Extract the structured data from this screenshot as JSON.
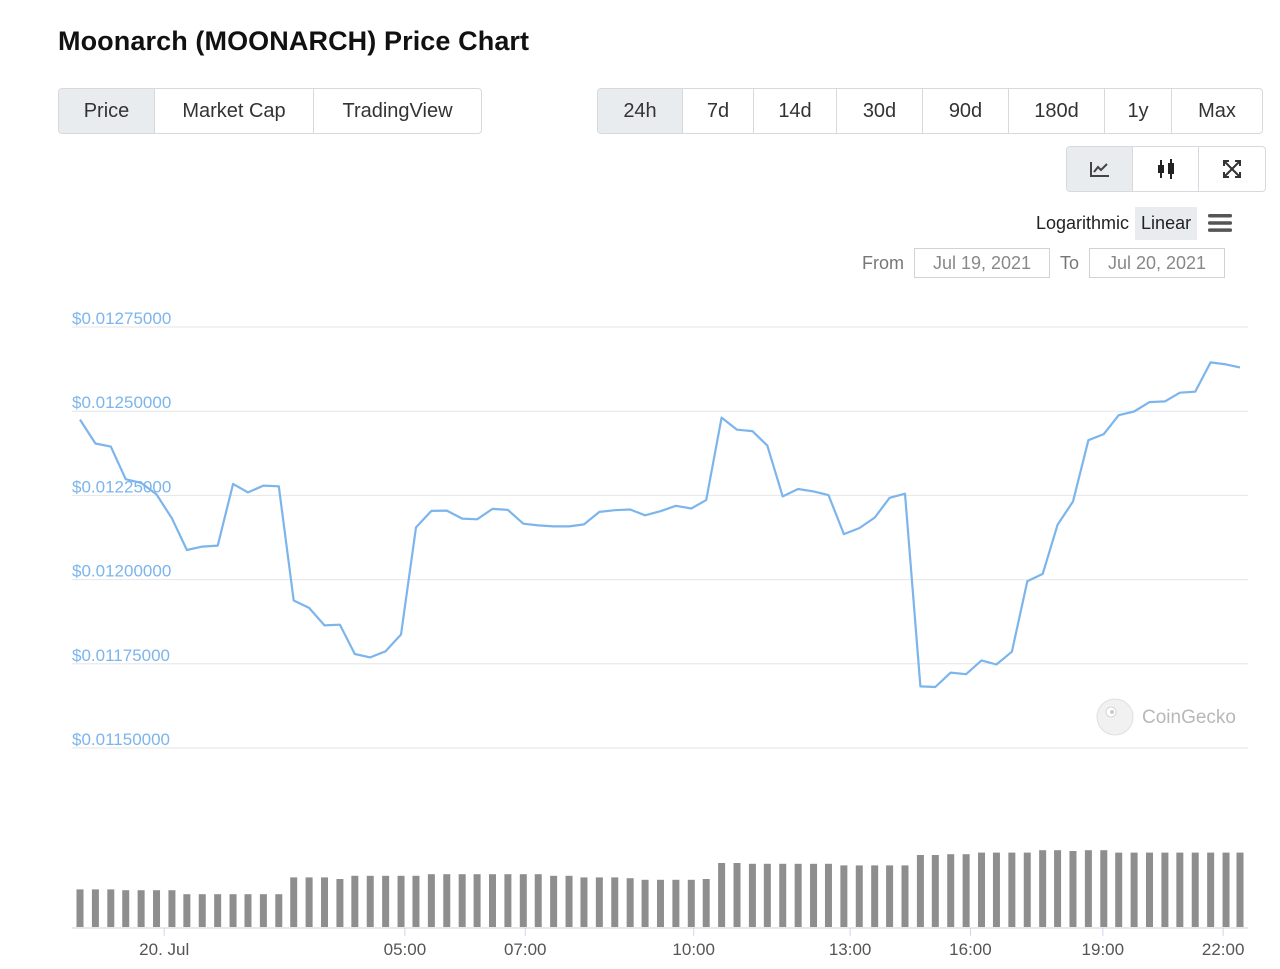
{
  "page": {
    "title": "Moonarch (MOONARCH) Price Chart"
  },
  "view_tabs": [
    {
      "label": "Price",
      "active": true
    },
    {
      "label": "Market Cap",
      "active": false
    },
    {
      "label": "TradingView",
      "active": false
    }
  ],
  "range_tabs": [
    {
      "label": "24h",
      "active": true
    },
    {
      "label": "7d",
      "active": false
    },
    {
      "label": "14d",
      "active": false
    },
    {
      "label": "30d",
      "active": false
    },
    {
      "label": "90d",
      "active": false
    },
    {
      "label": "180d",
      "active": false
    },
    {
      "label": "1y",
      "active": false
    },
    {
      "label": "Max",
      "active": false
    }
  ],
  "chart_type_buttons": [
    {
      "icon": "line-chart-icon",
      "active": true
    },
    {
      "icon": "candlestick-icon",
      "active": false
    },
    {
      "icon": "fullscreen-icon",
      "active": false
    }
  ],
  "scale": {
    "logarithmic_label": "Logarithmic",
    "linear_label": "Linear",
    "active": "Linear",
    "menu_icon": "hamburger-menu-icon"
  },
  "date_range": {
    "from_label": "From",
    "from_value": "Jul 19, 2021",
    "to_label": "To",
    "to_value": "Jul 20, 2021"
  },
  "watermark": {
    "text": "CoinGecko",
    "icon": "coingecko-logo-icon"
  },
  "colors": {
    "line": "#7cb5ec",
    "axis_label": "#7cb5ec",
    "volume": "#8e8e8e",
    "grid": "#e6e6e6"
  },
  "chart_data": {
    "type": "line",
    "y_scale": "linear",
    "ylim": [
      0.0115,
      0.01275
    ],
    "y_ticks": [
      0.0115,
      0.01175,
      0.012,
      0.01225,
      0.0125,
      0.01275
    ],
    "y_tick_labels": [
      "$0.01150000",
      "$0.01175000",
      "$0.01200000",
      "$0.01225000",
      "$0.01250000",
      "$0.01275000"
    ],
    "x_range_hours": [
      -1.75,
      22.35
    ],
    "x_ticks": [
      {
        "hour": 0,
        "label": "20. Jul"
      },
      {
        "hour": 5,
        "label": "05:00"
      },
      {
        "hour": 7.5,
        "label": "07:00"
      },
      {
        "hour": 11,
        "label": "10:00"
      },
      {
        "hour": 14.25,
        "label": "13:00"
      },
      {
        "hour": 16.75,
        "label": "16:00"
      },
      {
        "hour": 19.5,
        "label": "19:00"
      },
      {
        "hour": 22,
        "label": "22:00"
      }
    ],
    "series": [
      {
        "x": [
          -1.75,
          -1.43,
          -1.11,
          -0.8,
          -0.48,
          -0.16,
          0.16,
          0.47,
          0.79,
          1.11,
          1.43,
          1.74,
          2.06,
          2.38,
          2.69,
          3.01,
          3.33,
          3.65,
          3.96,
          4.28,
          4.6,
          4.92,
          5.23,
          5.55,
          5.87,
          6.19,
          6.5,
          6.82,
          7.14,
          7.46,
          7.77,
          8.09,
          8.41,
          8.72,
          9.04,
          9.36,
          9.68,
          9.99,
          10.31,
          10.63,
          10.95,
          11.26,
          11.58,
          11.9,
          12.22,
          12.53,
          12.85,
          13.17,
          13.49,
          13.8,
          14.12,
          14.44,
          14.76,
          15.07,
          15.39,
          15.71,
          16.02,
          16.34,
          16.66,
          16.98,
          17.29,
          17.61,
          17.93,
          18.25,
          18.56,
          18.88,
          19.2,
          19.52,
          19.83,
          20.15,
          20.47,
          20.79,
          21.1,
          21.42,
          21.74,
          22.06,
          22.35
        ],
        "y": [
          0.012475,
          0.012404,
          0.012395,
          0.012298,
          0.012287,
          0.012253,
          0.012182,
          0.012088,
          0.012098,
          0.012101,
          0.012284,
          0.012259,
          0.012279,
          0.012277,
          0.011938,
          0.011916,
          0.011864,
          0.011866,
          0.011779,
          0.011769,
          0.011787,
          0.011837,
          0.012155,
          0.012204,
          0.012205,
          0.012181,
          0.012179,
          0.01221,
          0.012207,
          0.012166,
          0.012161,
          0.012158,
          0.012158,
          0.012164,
          0.012201,
          0.012206,
          0.012208,
          0.012191,
          0.012203,
          0.012219,
          0.012211,
          0.012236,
          0.012481,
          0.012445,
          0.012441,
          0.012398,
          0.012247,
          0.012269,
          0.012262,
          0.012251,
          0.012135,
          0.012153,
          0.012184,
          0.012243,
          0.012255,
          0.011683,
          0.011681,
          0.011724,
          0.011719,
          0.01176,
          0.011748,
          0.011786,
          0.011995,
          0.012017,
          0.012163,
          0.012232,
          0.012414,
          0.012432,
          0.012488,
          0.012499,
          0.012527,
          0.012529,
          0.012555,
          0.012558,
          0.012645,
          0.012639,
          0.01263
        ]
      }
    ],
    "volume": {
      "x": [
        -1.75,
        -1.43,
        -1.11,
        -0.8,
        -0.48,
        -0.16,
        0.16,
        0.47,
        0.79,
        1.11,
        1.43,
        1.74,
        2.06,
        2.38,
        2.69,
        3.01,
        3.33,
        3.65,
        3.96,
        4.28,
        4.6,
        4.92,
        5.23,
        5.55,
        5.87,
        6.19,
        6.5,
        6.82,
        7.14,
        7.46,
        7.77,
        8.09,
        8.41,
        8.72,
        9.04,
        9.36,
        9.68,
        9.99,
        10.31,
        10.63,
        10.95,
        11.26,
        11.58,
        11.9,
        12.22,
        12.53,
        12.85,
        13.17,
        13.49,
        13.8,
        14.12,
        14.44,
        14.76,
        15.07,
        15.39,
        15.71,
        16.02,
        16.34,
        16.66,
        16.98,
        17.29,
        17.61,
        17.93,
        18.25,
        18.56,
        18.88,
        19.2,
        19.52,
        19.83,
        20.15,
        20.47,
        20.79,
        21.1,
        21.42,
        21.74,
        22.06,
        22.35
      ],
      "values": [
        0.47,
        0.47,
        0.47,
        0.46,
        0.46,
        0.46,
        0.46,
        0.41,
        0.41,
        0.41,
        0.41,
        0.41,
        0.41,
        0.41,
        0.62,
        0.62,
        0.62,
        0.6,
        0.64,
        0.64,
        0.64,
        0.64,
        0.64,
        0.66,
        0.66,
        0.66,
        0.66,
        0.66,
        0.66,
        0.66,
        0.66,
        0.64,
        0.64,
        0.62,
        0.62,
        0.62,
        0.61,
        0.59,
        0.59,
        0.59,
        0.59,
        0.6,
        0.8,
        0.8,
        0.79,
        0.79,
        0.79,
        0.79,
        0.79,
        0.79,
        0.77,
        0.77,
        0.77,
        0.77,
        0.77,
        0.9,
        0.9,
        0.91,
        0.91,
        0.93,
        0.93,
        0.93,
        0.93,
        0.96,
        0.96,
        0.95,
        0.96,
        0.96,
        0.93,
        0.93,
        0.93,
        0.93,
        0.93,
        0.93,
        0.93,
        0.93,
        0.93
      ]
    }
  }
}
